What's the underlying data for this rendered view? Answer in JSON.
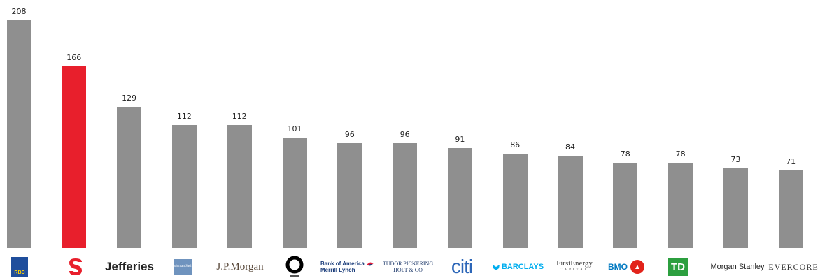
{
  "colors": {
    "bar_default": "#8f8f8f",
    "bar_highlight": "#e81f2c"
  },
  "chart_data": {
    "type": "bar",
    "title": "",
    "xlabel": "",
    "ylabel": "",
    "ylim": [
      0,
      208
    ],
    "grid": false,
    "legend": "none",
    "categories": [
      "RBC",
      "Scotiabank",
      "Jefferies",
      "Goldman Sachs",
      "J.P.Morgan",
      "Macquarie",
      "Bank of America Merrill Lynch",
      "Tudor Pickering Holt & Co",
      "citi",
      "BARCLAYS",
      "FirstEnergy Capital",
      "BMO",
      "TD",
      "Morgan Stanley",
      "Evercore"
    ],
    "values": [
      208,
      166,
      129,
      112,
      112,
      101,
      96,
      96,
      91,
      86,
      84,
      78,
      78,
      73,
      71
    ],
    "highlight_index": 1
  },
  "logos": {
    "rbc": "RBC",
    "jefferies": "Jefferies",
    "goldman": "Goldman Sachs",
    "jpmorgan": "J.P.Morgan",
    "boa_line1": "Bank of America",
    "boa_line2": "Merrill Lynch",
    "tudor_line1": "TUDOR PICKERING",
    "tudor_line2": "HOLT & CO",
    "citi": "citi",
    "barclays": "BARCLAYS",
    "firstenergy_line1": "FirstEnergy",
    "firstenergy_line2": "CAPITAL",
    "bmo": "BMO",
    "td": "TD",
    "morganstanley": "Morgan Stanley",
    "evercore": "EVERCORE"
  }
}
